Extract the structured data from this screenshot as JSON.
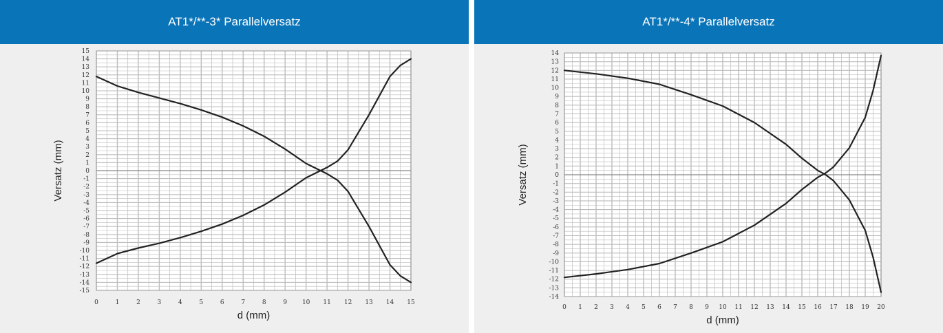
{
  "colors": {
    "header_bg": "#0a74b9",
    "header_text": "#ffffff",
    "panel_bg": "#efefef",
    "plot_bg": "#ffffff",
    "grid": "#bdbdbd",
    "curve": "#222222"
  },
  "chart_data": [
    {
      "type": "line",
      "title": "AT1*/**-3* Parallelversatz",
      "xlabel": "d (mm)",
      "ylabel": "Versatz (mm)",
      "xlim": [
        0,
        15
      ],
      "ylim": [
        -15,
        15
      ],
      "x_ticks": [
        "0",
        "1",
        "2",
        "3",
        "4",
        "5",
        "6",
        "7",
        "8",
        "9",
        "10",
        "11",
        "12",
        "13",
        "14",
        "15"
      ],
      "y_ticks": [
        "15",
        "14",
        "13",
        "12",
        "11",
        "10",
        "9",
        "8",
        "7",
        "6",
        "5",
        "4",
        "3",
        "2",
        "1",
        "0",
        "-1",
        "-2",
        "-3",
        "-4",
        "-5",
        "-6",
        "-7",
        "-8",
        "-9",
        "-10",
        "-11",
        "-12",
        "-13",
        "-14",
        "-15"
      ],
      "grid": true,
      "series": [
        {
          "x": [
            0,
            1,
            2,
            3,
            4,
            5,
            6,
            7,
            8,
            9,
            10,
            11,
            11.5,
            12,
            13,
            14,
            14.5,
            15
          ],
          "y": [
            11.8,
            10.6,
            9.8,
            9.1,
            8.4,
            7.6,
            6.7,
            5.6,
            4.3,
            2.7,
            0.9,
            -0.4,
            -1.2,
            -2.6,
            -7,
            -11.8,
            -13.2,
            -14
          ]
        },
        {
          "x": [
            0,
            1,
            2,
            3,
            4,
            5,
            6,
            7,
            8,
            9,
            10,
            11,
            11.5,
            12,
            13,
            14,
            14.5,
            15
          ],
          "y": [
            -11.6,
            -10.4,
            -9.7,
            -9.1,
            -8.4,
            -7.6,
            -6.7,
            -5.6,
            -4.3,
            -2.7,
            -0.9,
            0.4,
            1.2,
            2.6,
            7,
            11.8,
            13.2,
            14
          ]
        }
      ]
    },
    {
      "type": "line",
      "title": "AT1*/**-4* Parallelversatz",
      "xlabel": "d (mm)",
      "ylabel": "Versatz (mm)",
      "xlim": [
        0,
        20
      ],
      "ylim": [
        -14,
        14
      ],
      "x_ticks": [
        "0",
        "1",
        "2",
        "3",
        "4",
        "5",
        "6",
        "7",
        "8",
        "9",
        "10",
        "11",
        "12",
        "13",
        "14",
        "15",
        "16",
        "17",
        "18",
        "19",
        "20"
      ],
      "y_ticks": [
        "14",
        "13",
        "12",
        "11",
        "10",
        "9",
        "8",
        "7",
        "6",
        "5",
        "4",
        "3",
        "2",
        "1",
        "0",
        "-1",
        "-2",
        "-3",
        "-4",
        "-5",
        "-6",
        "-7",
        "-8",
        "-9",
        "-10",
        "-11",
        "-12",
        "-13",
        "-14"
      ],
      "grid": true,
      "series": [
        {
          "x": [
            0,
            2,
            4,
            6,
            8,
            10,
            12,
            14,
            15,
            16,
            16.5,
            17,
            18,
            19,
            19.5,
            20
          ],
          "y": [
            12,
            11.6,
            11.1,
            10.4,
            9.2,
            7.9,
            6.0,
            3.5,
            1.9,
            0.5,
            0,
            -0.7,
            -2.9,
            -6.4,
            -9.5,
            -13.5
          ]
        },
        {
          "x": [
            0,
            2,
            4,
            6,
            8,
            10,
            12,
            14,
            15,
            16,
            16.5,
            17,
            18,
            19,
            19.5,
            20
          ],
          "y": [
            -11.8,
            -11.4,
            -10.9,
            -10.2,
            -9.0,
            -7.7,
            -5.8,
            -3.3,
            -1.7,
            -0.3,
            0.2,
            0.9,
            3.1,
            6.6,
            9.7,
            13.7
          ]
        }
      ]
    }
  ]
}
